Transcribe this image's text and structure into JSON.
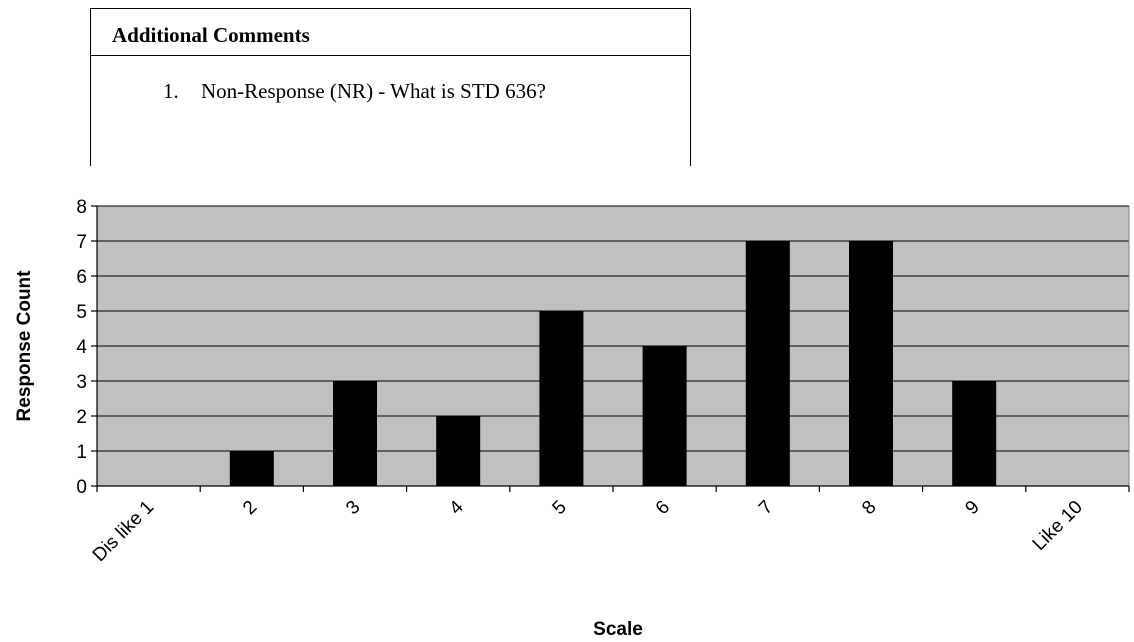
{
  "comments": {
    "title": "Additional Comments",
    "items": [
      {
        "number": "1.",
        "text": "Non-Response (NR) - What is STD 636?"
      }
    ]
  },
  "chart_data": {
    "type": "bar",
    "categories": [
      "Dis like 1",
      "2",
      "3",
      "4",
      "5",
      "6",
      "7",
      "8",
      "9",
      "Like 10"
    ],
    "values": [
      0,
      1,
      3,
      2,
      5,
      4,
      7,
      7,
      3,
      0
    ],
    "xlabel": "Scale",
    "ylabel": "Response Count",
    "ylim": [
      0,
      8
    ],
    "yticks": [
      0,
      1,
      2,
      3,
      4,
      5,
      6,
      7,
      8
    ],
    "grid": true,
    "colors": {
      "plot_bg": "#c0c0c0",
      "bar": "#000000",
      "grid": "#000000"
    }
  }
}
